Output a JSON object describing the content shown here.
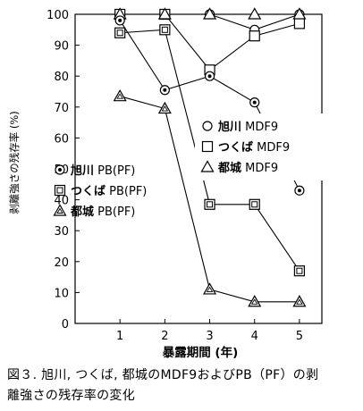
{
  "chart_data": {
    "type": "line",
    "ylabel": "剥離強さの残存率 (%)",
    "xlabel": "暴露期間 (年)",
    "categories": [
      1,
      2,
      3,
      4,
      5
    ],
    "x_ticks": [
      "1",
      "2",
      "3",
      "4",
      "5"
    ],
    "xlim": [
      0,
      5.5
    ],
    "ylim": [
      0,
      100
    ],
    "y_ticks": [
      "0",
      "10",
      "20",
      "30",
      "40",
      "50",
      "60",
      "70",
      "80",
      "90",
      "100"
    ],
    "grid": false,
    "series": [
      {
        "name": "旭川 MDF9",
        "marker": "circle",
        "x": [
          1,
          2,
          3,
          4,
          5
        ],
        "values": [
          100,
          100,
          100,
          95,
          100
        ]
      },
      {
        "name": "つくば MDF9",
        "marker": "square",
        "x": [
          1,
          2,
          3,
          4,
          5
        ],
        "values": [
          100,
          100,
          82,
          93,
          97
        ]
      },
      {
        "name": "都城 MDF9",
        "marker": "triangle",
        "x": [
          1,
          2,
          3,
          4,
          5
        ],
        "values": [
          100,
          100,
          100,
          100,
          100
        ]
      },
      {
        "name": "旭川 PB(PF)",
        "marker": "circle-dot",
        "x": [
          1,
          2,
          3,
          4,
          5
        ],
        "values": [
          98,
          75.5,
          80,
          71.5,
          43
        ]
      },
      {
        "name": "つくば PB(PF)",
        "marker": "square-dot",
        "x": [
          1,
          2,
          3,
          4,
          5
        ],
        "values": [
          94,
          95,
          38.5,
          38.5,
          17
        ]
      },
      {
        "name": "都城 PB(PF)",
        "marker": "triangle-dot",
        "x": [
          1,
          2,
          3,
          4,
          5
        ],
        "values": [
          73.5,
          69.5,
          11,
          7,
          7
        ]
      }
    ],
    "legend_mdf": [
      {
        "bold": "旭川",
        "rest": " MDF9",
        "marker": "circle"
      },
      {
        "bold": "つくば",
        "rest": " MDF9",
        "marker": "square"
      },
      {
        "bold": "都城",
        "rest": " MDF9",
        "marker": "triangle"
      }
    ],
    "legend_pb": [
      {
        "bold": "旭川",
        "rest": " PB(PF)",
        "marker": "circle-dot"
      },
      {
        "bold": "つくば",
        "rest": " PB(PF)",
        "marker": "square-dot"
      },
      {
        "bold": "都城",
        "rest": " PB(PF)",
        "marker": "triangle-dot"
      }
    ]
  },
  "caption": {
    "line1": "図３. 旭川, つくば, 都城のMDF9およびPB（PF）の剥",
    "line2": "離強さの残存率の変化"
  }
}
